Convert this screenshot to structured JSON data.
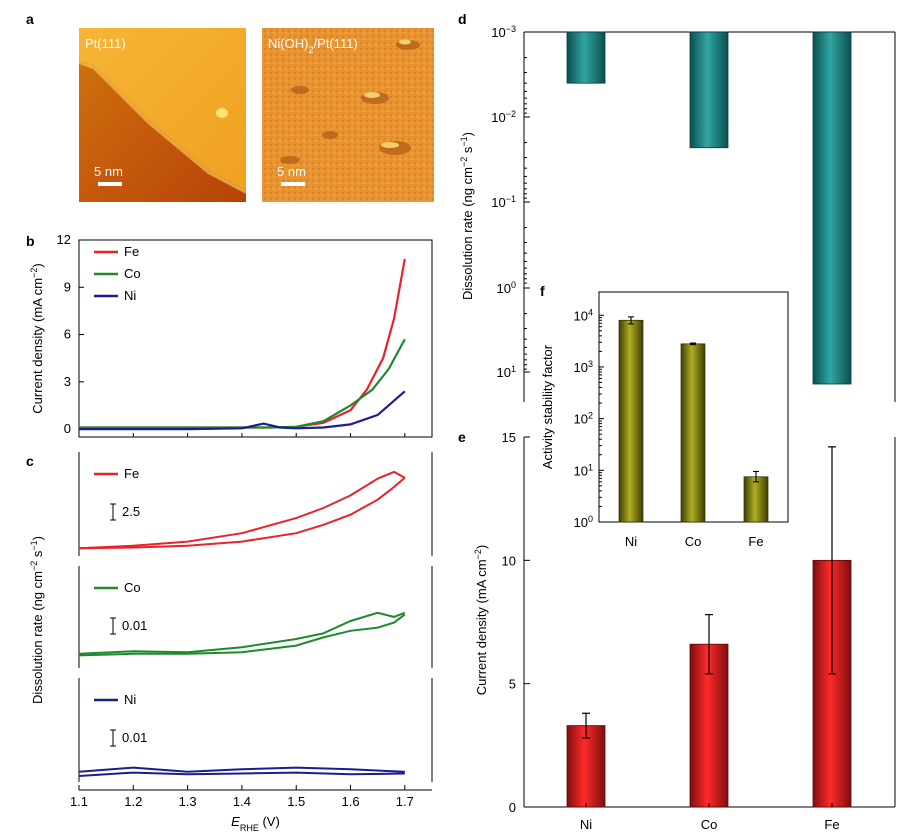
{
  "panels": {
    "a": "a",
    "b": "b",
    "c": "c",
    "d": "d",
    "e": "e",
    "f": "f"
  },
  "colors": {
    "Fe": "#e8232a",
    "Co": "#1e8a2d",
    "Ni": "#1b1e8e",
    "teal": "#0e6e6e",
    "olive": "#7b7a12",
    "red_bar": "#e01f1f"
  },
  "images": [
    {
      "label": "Pt(111)",
      "scale": "5 nm"
    },
    {
      "label_main": "Ni(OH)",
      "label_sub": "2",
      "label_rest": "/Pt(111)",
      "scale": "5 nm"
    }
  ],
  "chart_data": [
    {
      "id": "b",
      "type": "line",
      "ylabel": "Current density (mA cm−2)",
      "ylim": [
        -0.5,
        12
      ],
      "yticks": [
        "0",
        "3",
        "6",
        "9",
        "12"
      ],
      "xlim": [
        1.1,
        1.75
      ],
      "legend": "top-left",
      "series": [
        {
          "name": "Fe",
          "x": [
            1.1,
            1.3,
            1.45,
            1.5,
            1.55,
            1.6,
            1.63,
            1.66,
            1.68,
            1.7
          ],
          "y": [
            0.1,
            0.1,
            0.1,
            0.15,
            0.4,
            1.2,
            2.5,
            4.5,
            7,
            10.8
          ]
        },
        {
          "name": "Co",
          "x": [
            1.1,
            1.3,
            1.45,
            1.5,
            1.55,
            1.6,
            1.64,
            1.67,
            1.7
          ],
          "y": [
            0.1,
            0.1,
            0.1,
            0.15,
            0.5,
            1.5,
            2.5,
            3.8,
            5.7
          ]
        },
        {
          "name": "Ni",
          "x": [
            1.1,
            1.3,
            1.4,
            1.44,
            1.47,
            1.5,
            1.55,
            1.6,
            1.65,
            1.7
          ],
          "y": [
            0,
            0,
            0.05,
            0.35,
            0.1,
            0.05,
            0.1,
            0.3,
            0.9,
            2.4
          ]
        }
      ]
    },
    {
      "id": "c",
      "type": "line",
      "ylabel": "Dissolution rate (ng cm−2 s−1)",
      "xlabel_main": "E",
      "xlabel_sub": "RHE",
      "xlabel_unit": " (V)",
      "xticks": [
        "1.1",
        "1.2",
        "1.3",
        "1.4",
        "1.5",
        "1.6",
        "1.7"
      ],
      "xlim": [
        1.1,
        1.75
      ],
      "subplots": [
        {
          "name": "Fe",
          "scalebar": "2.5",
          "x": [
            1.1,
            1.2,
            1.3,
            1.4,
            1.5,
            1.55,
            1.6,
            1.65,
            1.68,
            1.7
          ],
          "y": [
            0.02,
            0.05,
            0.1,
            0.2,
            0.38,
            0.5,
            0.65,
            0.85,
            0.93,
            0.86
          ],
          "y2": [
            0.02,
            0.03,
            0.05,
            0.1,
            0.2,
            0.3,
            0.42,
            0.6,
            0.75,
            0.86
          ]
        },
        {
          "name": "Co",
          "scalebar": "0.01",
          "x": [
            1.1,
            1.2,
            1.3,
            1.4,
            1.5,
            1.55,
            1.6,
            1.65,
            1.68,
            1.7
          ],
          "y": [
            0.1,
            0.13,
            0.12,
            0.18,
            0.28,
            0.35,
            0.5,
            0.6,
            0.55,
            0.6
          ],
          "y2": [
            0.08,
            0.1,
            0.1,
            0.12,
            0.2,
            0.3,
            0.38,
            0.42,
            0.48,
            0.58
          ]
        },
        {
          "name": "Ni",
          "scalebar": "0.01",
          "x": [
            1.1,
            1.2,
            1.3,
            1.4,
            1.5,
            1.6,
            1.7
          ],
          "y": [
            0.05,
            0.1,
            0.05,
            0.08,
            0.1,
            0.08,
            0.05
          ],
          "y2": [
            0.0,
            0.04,
            0.02,
            0.03,
            0.04,
            0.02,
            0.03
          ]
        }
      ]
    },
    {
      "id": "d",
      "type": "bar",
      "ylabel": "Dissolution rate (ng cm−2 s−1)",
      "yscale": "log-reversed",
      "yticks": [
        {
          "base": "10",
          "exp": "−3"
        },
        {
          "base": "10",
          "exp": "−2"
        },
        {
          "base": "10",
          "exp": "−1"
        },
        {
          "base": "10",
          "exp": "0"
        },
        {
          "base": "10",
          "exp": "1"
        }
      ],
      "categories": [
        "Ni",
        "Co",
        "Fe"
      ],
      "values": [
        0.004,
        0.023,
        25
      ]
    },
    {
      "id": "e",
      "type": "bar",
      "ylabel": "Current density (mA cm−2)",
      "ylim": [
        0,
        15
      ],
      "yticks": [
        "0",
        "5",
        "10",
        "15"
      ],
      "categories": [
        "Ni",
        "Co",
        "Fe"
      ],
      "values": [
        3.3,
        6.6,
        10
      ],
      "errors": [
        0.5,
        1.2,
        4.6
      ]
    },
    {
      "id": "f",
      "type": "bar",
      "ylabel": "Activity stability factor",
      "yscale": "log",
      "yticks": [
        {
          "base": "10",
          "exp": "0"
        },
        {
          "base": "10",
          "exp": "1"
        },
        {
          "base": "10",
          "exp": "2"
        },
        {
          "base": "10",
          "exp": "3"
        },
        {
          "base": "10",
          "exp": "4"
        }
      ],
      "categories": [
        "Ni",
        "Co",
        "Fe"
      ],
      "values": [
        8000,
        2800,
        7.5
      ],
      "errors_low": [
        6800,
        2700,
        6
      ],
      "errors_high": [
        9300,
        2900,
        9.5
      ]
    }
  ]
}
